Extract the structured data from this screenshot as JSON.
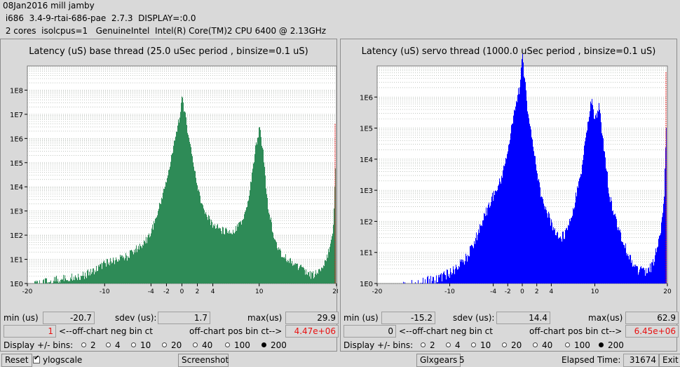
{
  "header": {
    "line1": "08Jan2016 mill jamby",
    "line2": " i686  3.4-9-rtai-686-pae  2.7.3  DISPLAY=:0.0",
    "line3": " 2 cores  isolcpus=1   GenuineIntel  Intel(R) Core(TM)2 CPU 6400 @ 2.13GHz"
  },
  "panels": [
    {
      "title": "Latency (uS) base thread (25.0 uSec period , binsize=0.1 uS)",
      "color": "#2e8b57",
      "min_label": "min (us)",
      "min_value": "-20.7",
      "sdev_label": "sdev (us):",
      "sdev_value": "1.7",
      "max_label": "max(us)",
      "max_value": "29.9",
      "neg_value": "1",
      "neg_label": "<--off-chart neg bin ct",
      "pos_label": "off-chart pos bin ct-->",
      "pos_value": "4.47e+06",
      "display_label": "Display +/- bins:",
      "options": [
        "2",
        "4",
        "10",
        "20",
        "40",
        "100",
        "200"
      ],
      "selected": "200"
    },
    {
      "title": "Latency (uS) servo thread (1000.0 uSec period , binsize=0.1 uS)",
      "color": "#0000ff",
      "min_label": "min (us)",
      "min_value": "-15.2",
      "sdev_label": "sdev (us):",
      "sdev_value": "14.4",
      "max_label": "max(us)",
      "max_value": "62.9",
      "neg_value": "0",
      "neg_label": "<--off-chart neg bin ct",
      "pos_label": "off-chart pos bin ct-->",
      "pos_value": "6.45e+06",
      "display_label": "Display +/- bins:",
      "options": [
        "2",
        "4",
        "10",
        "20",
        "40",
        "100",
        "200"
      ],
      "selected": "200"
    }
  ],
  "chart_data": [
    {
      "type": "bar",
      "title": "Latency (uS) base thread (25.0 uSec period , binsize=0.1 uS)",
      "x_ticks": [
        -20,
        -10,
        -4,
        -2,
        0,
        2,
        4,
        10,
        20
      ],
      "y_ticks": [
        "1E0",
        "1E1",
        "1E2",
        "1E3",
        "1E4",
        "1E5",
        "1E6",
        "1E7",
        "1E8"
      ],
      "xlim": [
        -20,
        20
      ],
      "yscale": "log",
      "ylim_exp": [
        0,
        9
      ],
      "series_color": "#2e8b57",
      "x": [
        -20,
        -19,
        -18,
        -17,
        -16,
        -15,
        -14,
        -13,
        -12,
        -11,
        -10,
        -9,
        -8,
        -7,
        -6,
        -5,
        -4,
        -3.5,
        -3,
        -2.5,
        -2,
        -1.5,
        -1,
        -0.5,
        0,
        0.5,
        1,
        1.5,
        2,
        2.5,
        3,
        3.5,
        4,
        5,
        6,
        7,
        8,
        8.5,
        9,
        9.5,
        10,
        10.5,
        11,
        12,
        13,
        14,
        15,
        16,
        17,
        18,
        19,
        19.5,
        20
      ],
      "log_count": [
        0,
        0.15,
        0.2,
        0.3,
        0.35,
        0.4,
        0.45,
        0.5,
        0.6,
        0.8,
        1.0,
        1.1,
        1.2,
        1.3,
        1.6,
        1.8,
        2.3,
        2.8,
        3.3,
        3.9,
        4.5,
        5.2,
        6.0,
        6.8,
        7.9,
        6.9,
        6.0,
        5.0,
        4.2,
        3.5,
        3.0,
        2.8,
        2.6,
        2.4,
        2.3,
        2.4,
        2.9,
        3.5,
        4.6,
        5.8,
        6.6,
        5.6,
        3.6,
        1.9,
        1.3,
        1.1,
        0.9,
        0.6,
        0.5,
        0.8,
        1.5,
        2.2,
        6.6
      ]
    },
    {
      "type": "bar",
      "title": "Latency (uS) servo thread (1000.0 uSec period , binsize=0.1 uS)",
      "x_ticks": [
        -20,
        -10,
        -4,
        -2,
        0,
        2,
        4,
        10,
        20
      ],
      "y_ticks": [
        "1E0",
        "1E1",
        "1E2",
        "1E3",
        "1E4",
        "1E5",
        "1E6"
      ],
      "xlim": [
        -20,
        20
      ],
      "yscale": "log",
      "ylim_exp": [
        0,
        7
      ],
      "series_color": "#0000ff",
      "x": [
        -20,
        -18,
        -16,
        -14,
        -12,
        -10,
        -9,
        -8,
        -7,
        -6,
        -5,
        -4,
        -3,
        -2.5,
        -2,
        -1.5,
        -1,
        -0.5,
        0,
        0.5,
        1,
        1.5,
        2,
        2.5,
        3,
        4,
        5,
        6,
        7,
        8,
        8.5,
        9,
        9.5,
        10,
        10.5,
        11,
        11.5,
        12,
        13,
        14,
        15,
        16,
        17,
        18,
        19,
        19.5,
        20
      ],
      "log_count": [
        0,
        0,
        0.1,
        0.2,
        0.3,
        0.5,
        0.7,
        0.9,
        1.3,
        1.9,
        2.5,
        3.0,
        3.5,
        4.0,
        4.5,
        5.2,
        5.8,
        6.4,
        7.5,
        6.2,
        5.3,
        4.5,
        3.8,
        3.1,
        2.6,
        2.1,
        1.6,
        1.8,
        2.6,
        3.6,
        4.5,
        5.3,
        6.1,
        5.4,
        5.9,
        5.0,
        4.0,
        3.0,
        2.1,
        1.4,
        0.9,
        0.6,
        0.5,
        0.8,
        1.8,
        3.0,
        6.8
      ]
    }
  ],
  "bottom": {
    "reset_label": "Reset",
    "ylog_label": "ylogscale",
    "screenshot_label": "Screenshot",
    "glxgears_label": "Glxgears",
    "glxgears_count": "5",
    "elapsed_label": "Elapsed Time:",
    "elapsed_value": "31674",
    "exit_label": "Exit"
  }
}
